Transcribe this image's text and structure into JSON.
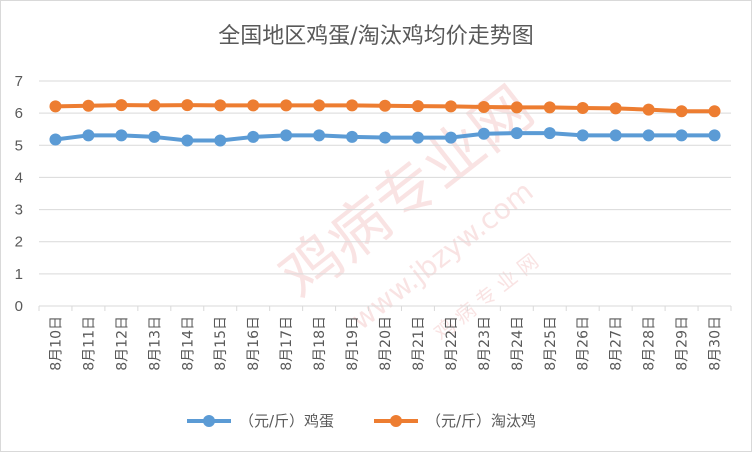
{
  "chart_data": {
    "type": "line",
    "title": "全国地区鸡蛋/淘汰鸡均价走势图",
    "categories": [
      "8月10日",
      "8月11日",
      "8月12日",
      "8月13日",
      "8月14日",
      "8月15日",
      "8月16日",
      "8月17日",
      "8月18日",
      "8月19日",
      "8月20日",
      "8月21日",
      "8月22日",
      "8月23日",
      "8月24日",
      "8月25日",
      "8月26日",
      "8月27日",
      "8月28日",
      "8月29日",
      "8月30日"
    ],
    "series": [
      {
        "name": "（元/斤）鸡蛋",
        "color": "#5b9bd5",
        "values": [
          5.18,
          5.31,
          5.31,
          5.26,
          5.15,
          5.15,
          5.26,
          5.31,
          5.31,
          5.26,
          5.24,
          5.24,
          5.24,
          5.36,
          5.38,
          5.38,
          5.31,
          5.31,
          5.31,
          5.31,
          5.31
        ]
      },
      {
        "name": "（元/斤）淘汰鸡",
        "color": "#ed7d31",
        "values": [
          6.21,
          6.23,
          6.25,
          6.24,
          6.25,
          6.24,
          6.24,
          6.24,
          6.24,
          6.24,
          6.23,
          6.22,
          6.21,
          6.19,
          6.18,
          6.18,
          6.16,
          6.15,
          6.11,
          6.06,
          6.06
        ]
      }
    ],
    "ylim": [
      0,
      7
    ],
    "yticks": [
      0,
      1,
      2,
      3,
      4,
      5,
      6,
      7
    ],
    "grid": true,
    "legend": "bottom"
  },
  "watermark": {
    "text1": "鸡病专业网",
    "text2": "www.jbzyw.com",
    "text3": "鸡 病 专 业 网",
    "color": "#e06666"
  }
}
